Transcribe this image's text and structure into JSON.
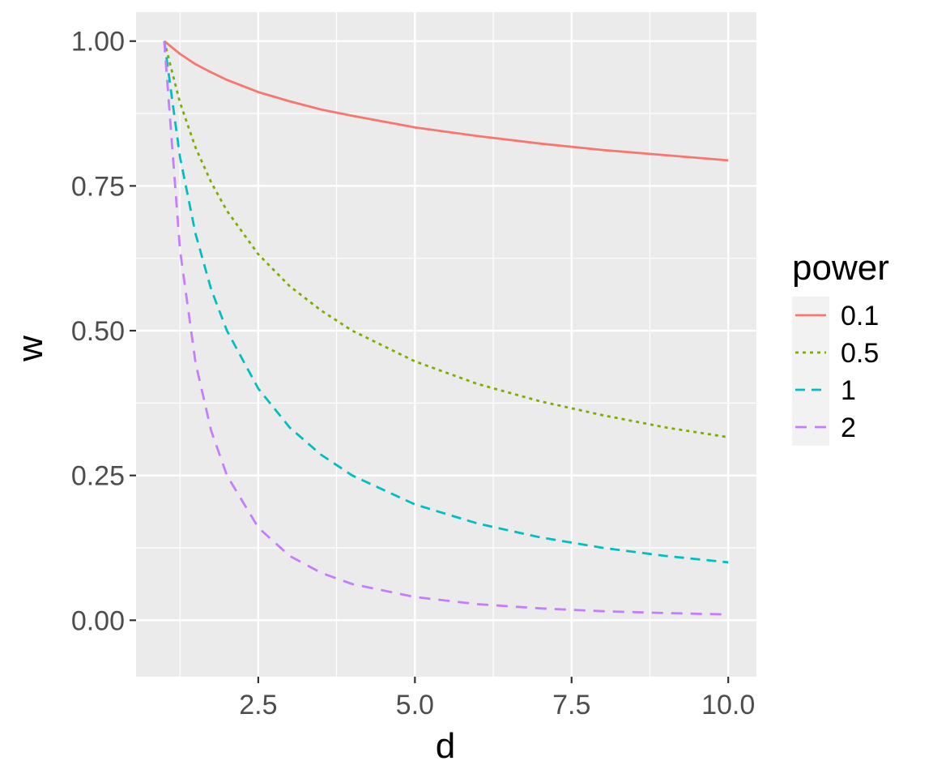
{
  "chart_data": {
    "type": "line",
    "xlabel": "d",
    "ylabel": "w",
    "xlim": [
      0.55,
      10.45
    ],
    "ylim": [
      -0.0975,
      1.05
    ],
    "x_ticks": [
      2.5,
      5.0,
      7.5,
      10.0
    ],
    "x_tick_labels": [
      "2.5",
      "5.0",
      "7.5",
      "10.0"
    ],
    "y_ticks": [
      0.0,
      0.25,
      0.5,
      0.75,
      1.0
    ],
    "y_tick_labels": [
      "0.00",
      "0.25",
      "0.50",
      "0.75",
      "1.00"
    ],
    "grid": true,
    "legend": {
      "title": "power",
      "position": "right"
    },
    "x": [
      1,
      1.25,
      1.5,
      1.75,
      2,
      2.5,
      3,
      3.5,
      4,
      5,
      6,
      7,
      8,
      9,
      10
    ],
    "series": [
      {
        "name": "0.1",
        "color": "#F8766D",
        "dash": "solid",
        "values": [
          1.0,
          0.978,
          0.96,
          0.946,
          0.933,
          0.912,
          0.896,
          0.882,
          0.871,
          0.851,
          0.836,
          0.823,
          0.812,
          0.803,
          0.794
        ]
      },
      {
        "name": "0.5",
        "color": "#7CAE00",
        "dash": "dotted",
        "values": [
          1.0,
          0.894,
          0.816,
          0.756,
          0.707,
          0.632,
          0.577,
          0.535,
          0.5,
          0.447,
          0.408,
          0.378,
          0.354,
          0.333,
          0.316
        ]
      },
      {
        "name": "1",
        "color": "#00BFC4",
        "dash": "dashed",
        "values": [
          1.0,
          0.8,
          0.667,
          0.571,
          0.5,
          0.4,
          0.333,
          0.286,
          0.25,
          0.2,
          0.167,
          0.143,
          0.125,
          0.111,
          0.1
        ]
      },
      {
        "name": "2",
        "color": "#C77CFF",
        "dash": "longdash",
        "values": [
          1.0,
          0.64,
          0.444,
          0.327,
          0.25,
          0.16,
          0.111,
          0.082,
          0.0625,
          0.04,
          0.0278,
          0.0204,
          0.0156,
          0.0123,
          0.01
        ]
      }
    ],
    "colors": {
      "panel": "#EBEBEB",
      "grid": "#FFFFFF",
      "axis_text": "#4D4D4D"
    }
  }
}
